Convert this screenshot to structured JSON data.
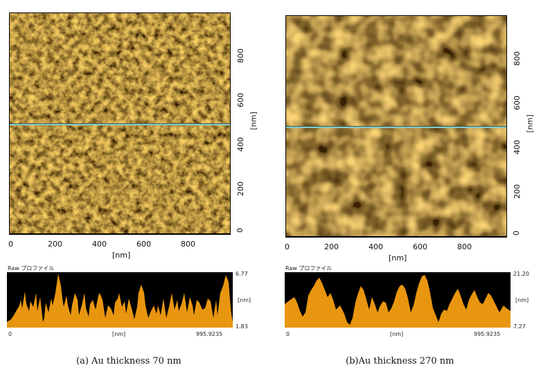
{
  "panels": [
    {
      "caption": "(a) Au thickness 70 nm",
      "x_ticks": [
        "0",
        "200",
        "400",
        "600",
        "800"
      ],
      "y_ticks": [
        "0",
        "200",
        "400",
        "600",
        "800"
      ],
      "x_unit": "[nm]",
      "y_unit": "[nm]",
      "profile_label": "Raw プロファイル",
      "profile_max": "6.77",
      "profile_min": "1.83",
      "profile_unit": "[nm]",
      "profile_x_start": "0",
      "profile_x_unit": "[nm]",
      "profile_x_end": "995.9235"
    },
    {
      "caption": "(b)Au thickness 270 nm",
      "x_ticks": [
        "0",
        "200",
        "400",
        "600",
        "800"
      ],
      "y_ticks": [
        "0",
        "200",
        "400",
        "600",
        "800"
      ],
      "x_unit": "[nm]",
      "y_unit": "[nm]",
      "profile_label": "Raw プロファイル",
      "profile_max": "21.20",
      "profile_min": "7.27",
      "profile_unit": "[nm]",
      "profile_x_start": "0",
      "profile_x_unit": "[nm]",
      "profile_x_end": "995.9235"
    }
  ],
  "colors": {
    "afm_dark": "#3a1400",
    "afm_mid": "#c86a00",
    "afm_light": "#ffe27a",
    "profile_fill": "#e8960f",
    "profile_bg": "#000000",
    "scan_line": "#7fd0c8"
  }
}
